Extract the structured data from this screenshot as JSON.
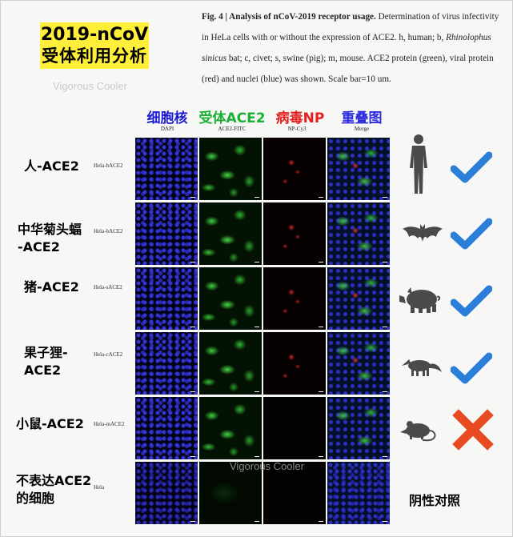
{
  "badge": {
    "line1": "2019-nCoV",
    "line2": "受体利用分析"
  },
  "caption": {
    "fig_label": "Fig. 4 | Analysis of nCoV-2019 receptor usage.",
    "text1": " Determination of virus infectivity in HeLa cells with or without the expression of ACE2. h, human; b, ",
    "species": "Rhinolophus sinicus",
    "text2": " bat; c, civet; s, swine (pig); m, mouse. ACE2 protein (green), viral protein (red) and nuclei (blue) was shown. Scale bar=10 um."
  },
  "watermarks": [
    "Vigorous Cooler",
    "Vigorous Cooler"
  ],
  "columns": [
    {
      "title": "细胞核",
      "sub": "DAPI",
      "color": "#1a1ad0"
    },
    {
      "title": "受体ACE2",
      "sub": "ACE2-FITC",
      "color": "#19b034"
    },
    {
      "title": "病毒NP",
      "sub": "NP-Cy3",
      "color": "#e51e1e"
    },
    {
      "title": "重叠图",
      "sub": "Merge",
      "color": "#2d2de0"
    }
  ],
  "rows": [
    {
      "label": "人-ACE2",
      "cell_line": "Hela-hACE2",
      "species_icon": "human-icon",
      "result_icon": "check-icon"
    },
    {
      "label": "中华菊头蝠\n-ACE2",
      "cell_line": "Hela-bACE2",
      "species_icon": "bat-icon",
      "result_icon": "check-icon"
    },
    {
      "label": "猪-ACE2",
      "cell_line": "Hela-sACE2",
      "species_icon": "pig-icon",
      "result_icon": "check-icon"
    },
    {
      "label": "果子狸-\nACE2",
      "cell_line": "Hela-cACE2",
      "species_icon": "civet-icon",
      "result_icon": "check-icon"
    },
    {
      "label": "小鼠-ACE2",
      "cell_line": "Hela-mACE2",
      "species_icon": "mouse-icon",
      "result_icon": "cross-icon"
    },
    {
      "label": "不表达ACE2\n的细胞",
      "cell_line": "Hela",
      "species_icon": "",
      "result_icon": ""
    }
  ],
  "control_label": "阴性对照",
  "colors": {
    "check": "#2b7fd8",
    "cross": "#e84a22",
    "silhouette": "#4a4a4a",
    "badge": "#ffef3a"
  }
}
